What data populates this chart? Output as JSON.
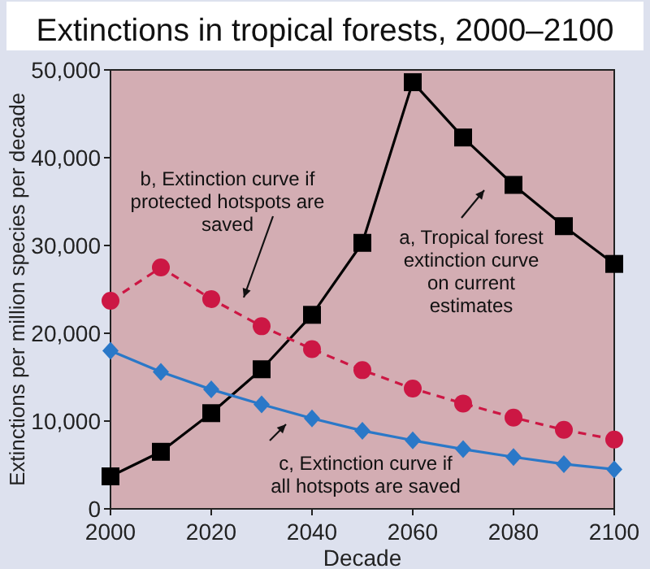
{
  "chart_data": {
    "type": "line",
    "title": "Extinctions in tropical forests, 2000–2100",
    "xlabel": "Decade",
    "ylabel": "Extinctions per million species per decade",
    "x": [
      2000,
      2010,
      2020,
      2030,
      2040,
      2050,
      2060,
      2070,
      2080,
      2090,
      2100
    ],
    "xlim": [
      2000,
      2100
    ],
    "xticks": [
      2000,
      2020,
      2040,
      2060,
      2080,
      2100
    ],
    "ylim": [
      0,
      50000
    ],
    "yticks": [
      {
        "value": 0,
        "label": "0"
      },
      {
        "value": 10000,
        "label": "10,000"
      },
      {
        "value": 20000,
        "label": "20,000"
      },
      {
        "value": 30000,
        "label": "30,000"
      },
      {
        "value": 40000,
        "label": "40,000"
      },
      {
        "value": 50000,
        "label": "50,000"
      }
    ],
    "grid": false,
    "legend": false,
    "series": [
      {
        "name": "a, Tropical forest extinction curve on current estimates",
        "color": "#000000",
        "marker": "square",
        "line_style": "solid",
        "values": [
          3700,
          6500,
          10900,
          15900,
          22100,
          30300,
          48600,
          42300,
          36900,
          32200,
          27900
        ]
      },
      {
        "name": "b, Extinction curve if protected hotspots are saved",
        "color": "#cc1744",
        "marker": "circle",
        "line_style": "dashed",
        "values": [
          23700,
          27500,
          23900,
          20800,
          18200,
          15800,
          13700,
          12000,
          10400,
          9000,
          7900
        ]
      },
      {
        "name": "c, Extinction curve if all hotspots are saved",
        "color": "#2a78c8",
        "marker": "diamond",
        "line_style": "solid",
        "values": [
          18000,
          15600,
          13600,
          11900,
          10300,
          8900,
          7800,
          6800,
          5900,
          5100,
          4500
        ]
      }
    ]
  }
}
